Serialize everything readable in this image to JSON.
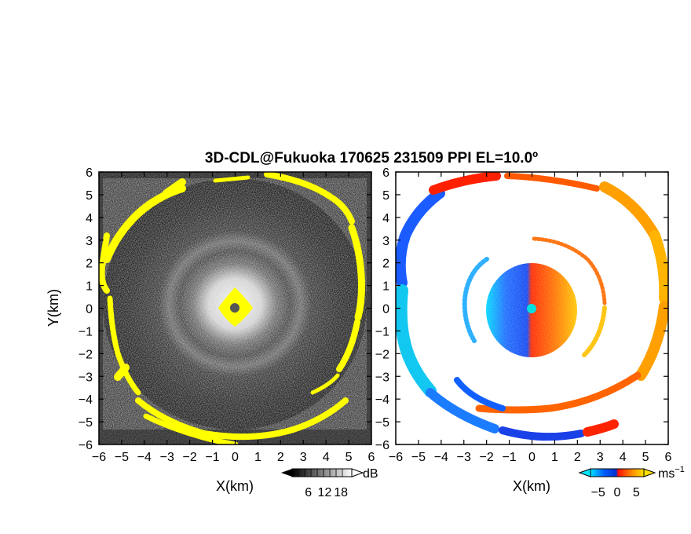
{
  "chart_data": [
    {
      "type": "heatmap",
      "panel": "reflectivity",
      "title": "3D-CDL@Fukuoka 170625 231509 PPI EL=10.0º",
      "xlabel": "X(km)",
      "ylabel": "Y(km)",
      "xlim": [
        -6,
        6
      ],
      "ylim": [
        -6,
        6
      ],
      "xticks": [
        "−6",
        "−5",
        "−4",
        "−3",
        "−2",
        "−1",
        "0",
        "1",
        "2",
        "3",
        "4",
        "5",
        "6"
      ],
      "yticks": [
        "6",
        "5",
        "4",
        "3",
        "2",
        "1",
        "0",
        "−1",
        "−2",
        "−3",
        "−4",
        "−5",
        "−6"
      ],
      "colormap": "grayscale with yellow highlight",
      "colorbar": {
        "unit": "dB",
        "tick_labels": [
          "6",
          "12",
          "18"
        ],
        "tick_values": [
          6,
          12,
          18
        ],
        "range": [
          0,
          22
        ]
      },
      "colors": {
        "highlight": "#ffff00",
        "background": "#1a1a1a",
        "center": "#555555"
      }
    },
    {
      "type": "heatmap",
      "panel": "doppler_velocity",
      "xlabel": "X(km)",
      "xlim": [
        -6,
        6
      ],
      "ylim": [
        -6,
        6
      ],
      "xticks": [
        "−6",
        "−5",
        "−4",
        "−3",
        "−2",
        "−1",
        "0",
        "1",
        "2",
        "3",
        "4",
        "5",
        "6"
      ],
      "yticks": [
        "6",
        "5",
        "4",
        "3",
        "2",
        "1",
        "0",
        "−1",
        "−2",
        "−3",
        "−4",
        "−5",
        "−6"
      ],
      "colormap": "diverging cyan-blue-red-yellow",
      "colorbar": {
        "unit": "ms",
        "unit_exponent": "−1",
        "tick_labels": [
          "−5",
          "0",
          "5"
        ],
        "tick_values": [
          -5,
          0,
          5
        ],
        "range": [
          -7,
          7
        ]
      },
      "colors": {
        "cyan": "#00d8ff",
        "blue": "#0050ff",
        "red": "#ff2000",
        "orange": "#ff8800",
        "yellow": "#ffd000",
        "center": "#00e0e0"
      }
    }
  ]
}
